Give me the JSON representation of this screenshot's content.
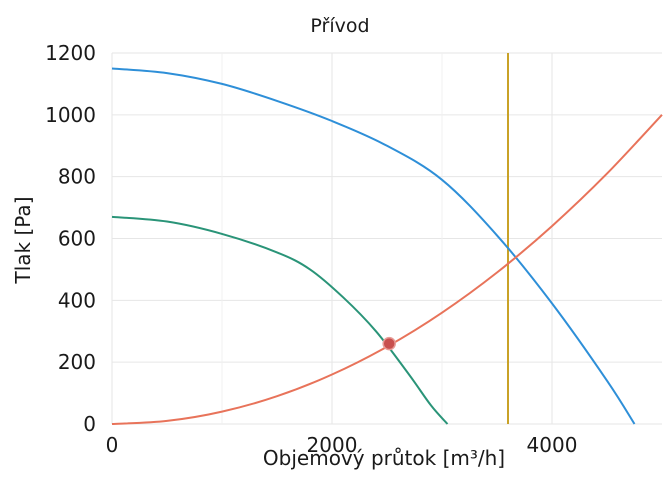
{
  "chart_data": {
    "type": "line",
    "title": "Přívod",
    "xlabel": "Objemový průtok [m³/h]",
    "ylabel": "Tlak [Pa]",
    "xlim": [
      0,
      5000
    ],
    "ylim": [
      0,
      1200
    ],
    "xticks": [
      0,
      2000,
      4000
    ],
    "yticks": [
      0,
      200,
      400,
      600,
      800,
      1000,
      1200
    ],
    "grid": true,
    "legend": "none",
    "series": [
      {
        "color": "#2e8fd8",
        "x": [
          0,
          500,
          1000,
          1500,
          2000,
          2500,
          3000,
          3500,
          4000,
          4500,
          4750
        ],
        "y": [
          1150,
          1135,
          1100,
          1045,
          980,
          900,
          790,
          610,
          390,
          140,
          0
        ]
      },
      {
        "color": "#2a9478",
        "x": [
          0,
          500,
          1000,
          1500,
          1800,
          2100,
          2400,
          2700,
          2900,
          3050
        ],
        "y": [
          670,
          655,
          615,
          555,
          500,
          410,
          300,
          160,
          60,
          0
        ]
      },
      {
        "color": "#e8735a",
        "x": [
          0,
          500,
          1000,
          1500,
          2000,
          2500,
          3000,
          3500,
          4000,
          4500,
          5000
        ],
        "y": [
          0,
          10,
          40,
          90,
          160,
          250,
          360,
          490,
          640,
          810,
          1000
        ]
      }
    ],
    "vertical_line": {
      "x": 3600,
      "color": "#c9a227"
    },
    "operating_point": {
      "x": 2520,
      "y": 260,
      "color": "#c8504e"
    }
  }
}
